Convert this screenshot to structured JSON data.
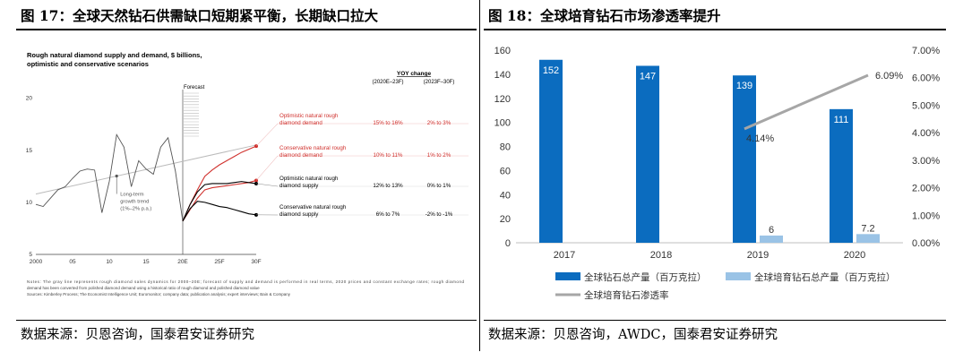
{
  "left_panel": {
    "figure_title": "图 17：全球天然钻石供需缺口短期紧平衡，长期缺口拉大",
    "source": "数据来源：贝恩咨询，国泰君安证券研究"
  },
  "right_panel": {
    "figure_title": "图 18：全球培育钻石市场渗透率提升",
    "source": "数据来源：贝恩咨询，AWDC，国泰君安证券研究"
  },
  "chart_data": [
    {
      "type": "line",
      "title": "Rough natural diamond supply and demand, $ billions,",
      "subtitle": "optimistic and conservative scenarios",
      "xlabel": "",
      "ylabel": "",
      "x_ticks": [
        "2000",
        "05",
        "10",
        "15",
        "20E",
        "25F",
        "30F"
      ],
      "y_ticks": [
        5,
        10,
        15,
        20
      ],
      "ylim": [
        5,
        21
      ],
      "forecast_label": "Forecast",
      "trend_annotation": [
        "Long-term",
        "growth trend",
        "(1%–2% p.a.)"
      ],
      "yoy_header": "YOY change",
      "yoy_periods": [
        "(2020E–23F)",
        "(2023F–30F)"
      ],
      "historical": {
        "x": [
          2000,
          2001,
          2002,
          2003,
          2004,
          2005,
          2006,
          2007,
          2008,
          2009,
          2010,
          2011,
          2012,
          2013,
          2014,
          2015,
          2016,
          2017,
          2018,
          2019,
          2020
        ],
        "y": [
          9.8,
          9.6,
          10.4,
          11.2,
          11.5,
          12.3,
          13.0,
          13.2,
          13.1,
          9.0,
          12.0,
          16.5,
          15.3,
          11.5,
          14.0,
          13.2,
          12.7,
          15.3,
          16.2,
          13.0,
          8.2
        ]
      },
      "trend_line": {
        "x": [
          2000,
          2030
        ],
        "y": [
          10.8,
          15.5
        ]
      },
      "series": [
        {
          "name": "Optimistic natural rough diamond demand",
          "label_lines": [
            "Optimistic natural rough",
            "diamond demand"
          ],
          "yoy": [
            "15% to 16%",
            "2% to 3%"
          ],
          "color": "#d0312d",
          "marker": "2030",
          "x": [
            2020,
            2021,
            2022,
            2023,
            2024,
            2025,
            2026,
            2027,
            2028,
            2029,
            2030
          ],
          "y": [
            8.2,
            9.8,
            11.2,
            12.5,
            13.1,
            13.6,
            14.0,
            14.4,
            14.8,
            15.1,
            15.4
          ]
        },
        {
          "name": "Conservative natural rough diamond demand",
          "label_lines": [
            "Conservative natural rough",
            "diamond demand"
          ],
          "yoy": [
            "10% to 11%",
            "1% to 2%"
          ],
          "color": "#d0312d",
          "marker": "2030",
          "x": [
            2020,
            2021,
            2022,
            2023,
            2024,
            2025,
            2026,
            2027,
            2028,
            2029,
            2030
          ],
          "y": [
            8.2,
            9.3,
            10.4,
            11.2,
            11.4,
            11.5,
            11.6,
            11.7,
            11.8,
            11.9,
            12.1
          ]
        },
        {
          "name": "Optimistic natural rough diamond supply",
          "label_lines": [
            "Optimistic natural rough",
            "diamond supply"
          ],
          "yoy": [
            "12% to 13%",
            "0% to 1%"
          ],
          "color": "#000000",
          "marker": "2030",
          "x": [
            2020,
            2021,
            2022,
            2023,
            2024,
            2025,
            2026,
            2027,
            2028,
            2029,
            2030
          ],
          "y": [
            8.2,
            9.8,
            11.0,
            11.7,
            11.8,
            11.8,
            11.8,
            11.9,
            12.0,
            11.9,
            11.8
          ]
        },
        {
          "name": "Conservative natural rough diamond supply",
          "label_lines": [
            "Conservative natural rough",
            "diamond supply"
          ],
          "yoy": [
            "6% to 7%",
            "-2% to -1%"
          ],
          "color": "#000000",
          "marker": "2030",
          "x": [
            2020,
            2021,
            2022,
            2023,
            2024,
            2025,
            2026,
            2027,
            2028,
            2029,
            2030
          ],
          "y": [
            8.2,
            9.4,
            10.1,
            10.0,
            9.8,
            9.6,
            9.5,
            9.3,
            9.1,
            8.9,
            8.8
          ]
        }
      ],
      "notes": [
        "Notes: The gray line represents rough diamond sales dynamics for 2000–20E; forecast of supply and demand is performed in real terms, 2020 prices and constant exchange rates; rough diamond",
        "demand has been converted from polished diamond demand using a historical ratio of rough diamond and polished diamond value",
        "Sources: Kimberley Process; The Economist Intelligence Unit; Euromonitor; company data; publication analysis; expert interviews; Bain & Company"
      ]
    },
    {
      "type": "bar",
      "categories": [
        "2017",
        "2018",
        "2019",
        "2020"
      ],
      "series": [
        {
          "name": "全球钻石总产量（百万克拉）",
          "axis": "left",
          "color": "#0b6cbf",
          "values": [
            152,
            147,
            139,
            111
          ]
        },
        {
          "name": "全球培育钻石总产量（百万克拉）",
          "axis": "left",
          "color": "#9ac3e6",
          "values": [
            null,
            null,
            6,
            7.2
          ]
        },
        {
          "name": "全球培育钻石渗透率",
          "type": "line",
          "axis": "right",
          "color": "#a6a6a6",
          "values": [
            null,
            null,
            4.14,
            6.09
          ],
          "labels": [
            "",
            "",
            "4.14%",
            "6.09%"
          ]
        }
      ],
      "value_labels": [
        "152",
        "147",
        "139",
        "111"
      ],
      "lab_labels": [
        "",
        "",
        "6",
        "7.2"
      ],
      "y_left_ticks": [
        "0",
        "20",
        "40",
        "60",
        "80",
        "100",
        "120",
        "140",
        "160"
      ],
      "y_right_ticks": [
        "0.00%",
        "1.00%",
        "2.00%",
        "3.00%",
        "4.00%",
        "5.00%",
        "6.00%",
        "7.00%"
      ],
      "ylim_left": [
        0,
        160
      ],
      "ylim_right": [
        0,
        7
      ],
      "legend_position": "bottom",
      "grid": false
    }
  ]
}
